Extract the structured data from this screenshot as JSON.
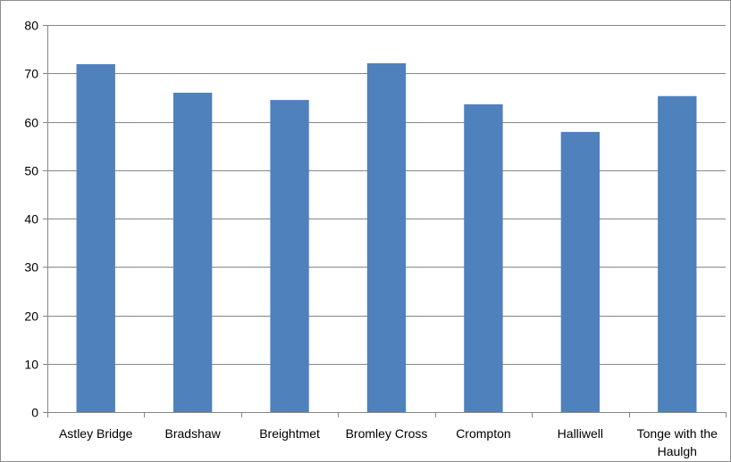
{
  "chart_data": {
    "type": "bar",
    "title": "",
    "xlabel": "",
    "ylabel": "",
    "categories": [
      "Astley Bridge",
      "Bradshaw",
      "Breightmet",
      "Bromley Cross",
      "Crompton",
      "Halliwell",
      "Tonge with the Haulgh"
    ],
    "category_lines": [
      [
        "Astley Bridge"
      ],
      [
        "Bradshaw"
      ],
      [
        "Breightmet"
      ],
      [
        "Bromley Cross"
      ],
      [
        "Crompton"
      ],
      [
        "Halliwell"
      ],
      [
        "Tonge with the",
        "Haulgh"
      ]
    ],
    "values": [
      71.9,
      66.0,
      64.5,
      72.1,
      63.6,
      57.9,
      65.3
    ],
    "ylim": [
      0,
      80
    ],
    "yticks": [
      0,
      10,
      20,
      30,
      40,
      50,
      60,
      70,
      80
    ],
    "grid": true,
    "legend": "none",
    "colors": {
      "bar": "#4f81bd",
      "grid": "#868686"
    }
  }
}
